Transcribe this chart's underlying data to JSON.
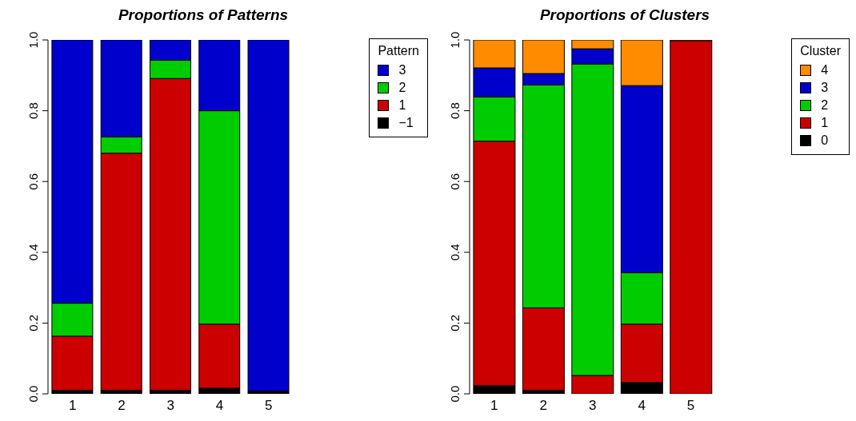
{
  "chart_data": [
    {
      "type": "bar",
      "title": "Proportions of Patterns",
      "categories": [
        "1",
        "2",
        "3",
        "4",
        "5"
      ],
      "stacked": true,
      "legend": "top right",
      "legend_title": "Pattern",
      "grid": false,
      "ylim": [
        0,
        1
      ],
      "yticks": [
        {
          "value": 0,
          "label": "0.0"
        },
        {
          "value": 0.2,
          "label": "0.2"
        },
        {
          "value": 0.4,
          "label": "0.4"
        },
        {
          "value": 0.6,
          "label": "0.6"
        },
        {
          "value": 0.8,
          "label": "0.8"
        },
        {
          "value": 1,
          "label": "1.0"
        }
      ],
      "series": [
        {
          "name": "−1",
          "color": "#000000",
          "values": [
            0.01,
            0.01,
            0.01,
            0.016,
            0.008
          ]
        },
        {
          "name": "1",
          "color": "#cd0000",
          "values": [
            0.153,
            0.67,
            0.881,
            0.181,
            0
          ]
        },
        {
          "name": "2",
          "color": "#00cd00",
          "values": [
            0.093,
            0.046,
            0.052,
            0.603,
            0
          ]
        },
        {
          "name": "3",
          "color": "#0000cd",
          "values": [
            0.744,
            0.274,
            0.057,
            0.2,
            0.992
          ]
        }
      ]
    },
    {
      "type": "bar",
      "title": "Proportions of Clusters",
      "categories": [
        "1",
        "2",
        "3",
        "4",
        "5"
      ],
      "stacked": true,
      "legend": "top right",
      "legend_title": "Cluster",
      "grid": false,
      "ylim": [
        0,
        1
      ],
      "yticks": [
        {
          "value": 0,
          "label": "0.0"
        },
        {
          "value": 0.2,
          "label": "0.2"
        },
        {
          "value": 0.4,
          "label": "0.4"
        },
        {
          "value": 0.6,
          "label": "0.6"
        },
        {
          "value": 0.8,
          "label": "0.8"
        },
        {
          "value": 1,
          "label": "1.0"
        }
      ],
      "series": [
        {
          "name": "0",
          "color": "#000000",
          "values": [
            0.023,
            0.01,
            0,
            0.032,
            0
          ]
        },
        {
          "name": "1",
          "color": "#cd0000",
          "values": [
            0.691,
            0.233,
            0.052,
            0.165,
            0.998
          ]
        },
        {
          "name": "2",
          "color": "#00cd00",
          "values": [
            0.125,
            0.63,
            0.88,
            0.145,
            0
          ]
        },
        {
          "name": "3",
          "color": "#0000cd",
          "values": [
            0.082,
            0.032,
            0.043,
            0.529,
            0
          ]
        },
        {
          "name": "4",
          "color": "#ff8c00",
          "values": [
            0.079,
            0.095,
            0.025,
            0.129,
            0.002
          ]
        }
      ]
    }
  ]
}
